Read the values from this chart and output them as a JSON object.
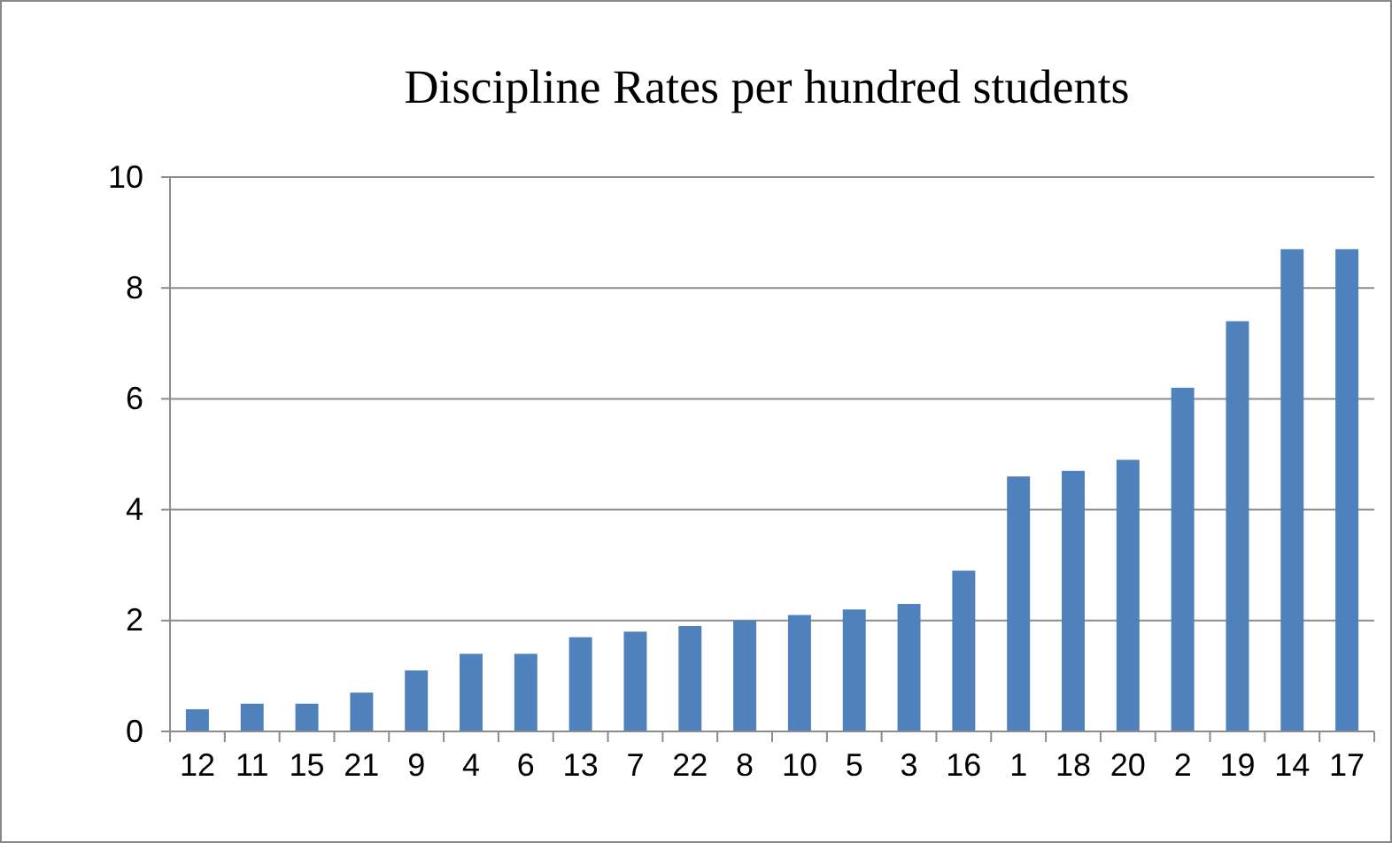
{
  "chart_data": {
    "type": "bar",
    "title": "Discipline Rates per hundred students",
    "categories": [
      "12",
      "11",
      "15",
      "21",
      "9",
      "4",
      "6",
      "13",
      "7",
      "22",
      "8",
      "10",
      "5",
      "3",
      "16",
      "1",
      "18",
      "20",
      "2",
      "19",
      "14",
      "17"
    ],
    "values": [
      0.4,
      0.5,
      0.5,
      0.7,
      1.1,
      1.4,
      1.4,
      1.7,
      1.8,
      1.9,
      2.0,
      2.1,
      2.2,
      2.3,
      2.9,
      4.6,
      4.7,
      4.9,
      6.2,
      7.4,
      8.7,
      8.7
    ],
    "color": "#4f81bd",
    "ylim": [
      0,
      10
    ],
    "yticks": [
      0,
      2,
      4,
      6,
      8,
      10
    ],
    "grid": "y"
  }
}
